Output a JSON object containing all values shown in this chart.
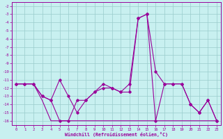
{
  "x": [
    0,
    1,
    2,
    3,
    4,
    5,
    6,
    7,
    8,
    9,
    10,
    11,
    12,
    13,
    14,
    15,
    16,
    17,
    18,
    19,
    20,
    21,
    22,
    23
  ],
  "series1": [
    -11.5,
    -11.5,
    -11.5,
    -13.0,
    -13.5,
    -11.0,
    -13.0,
    -15.0,
    -13.5,
    -12.5,
    -11.5,
    -12.0,
    -12.5,
    -11.5,
    -3.5,
    -3.0,
    -10.0,
    -11.5,
    -11.5,
    -11.5,
    -14.0,
    -15.0,
    -13.5,
    -16.0
  ],
  "series2": [
    -11.5,
    -11.5,
    -11.5,
    -13.0,
    -13.5,
    -16.0,
    -16.0,
    -13.5,
    -13.5,
    -12.5,
    -12.0,
    -12.0,
    -12.5,
    -12.5,
    -3.5,
    -3.0,
    -16.0,
    -11.5,
    -11.5,
    -11.5,
    -14.0,
    -15.0,
    -13.5,
    -16.0
  ],
  "series3": [
    -11.5,
    -11.5,
    -11.5,
    -13.5,
    -16.0,
    -16.0,
    -16.0,
    -16.0,
    -16.0,
    -16.0,
    -16.0,
    -16.0,
    -16.0,
    -16.0,
    -16.0,
    -16.0,
    -16.0,
    -16.0,
    -16.0,
    -16.0,
    -16.0,
    -16.0,
    -16.0,
    -16.0
  ],
  "line_color": "#990099",
  "bg_color": "#c8f0f0",
  "grid_color": "#99cccc",
  "xlabel": "Windchill (Refroidissement éolien,°C)",
  "ylim": [
    -16.5,
    -1.5
  ],
  "xlim": [
    -0.5,
    23.5
  ],
  "yticks": [
    -16,
    -15,
    -14,
    -13,
    -12,
    -11,
    -10,
    -9,
    -8,
    -7,
    -6,
    -5,
    -4,
    -3,
    -2
  ],
  "xticks": [
    0,
    1,
    2,
    3,
    4,
    5,
    6,
    7,
    8,
    9,
    10,
    11,
    12,
    13,
    14,
    15,
    16,
    17,
    18,
    19,
    20,
    21,
    22,
    23
  ]
}
